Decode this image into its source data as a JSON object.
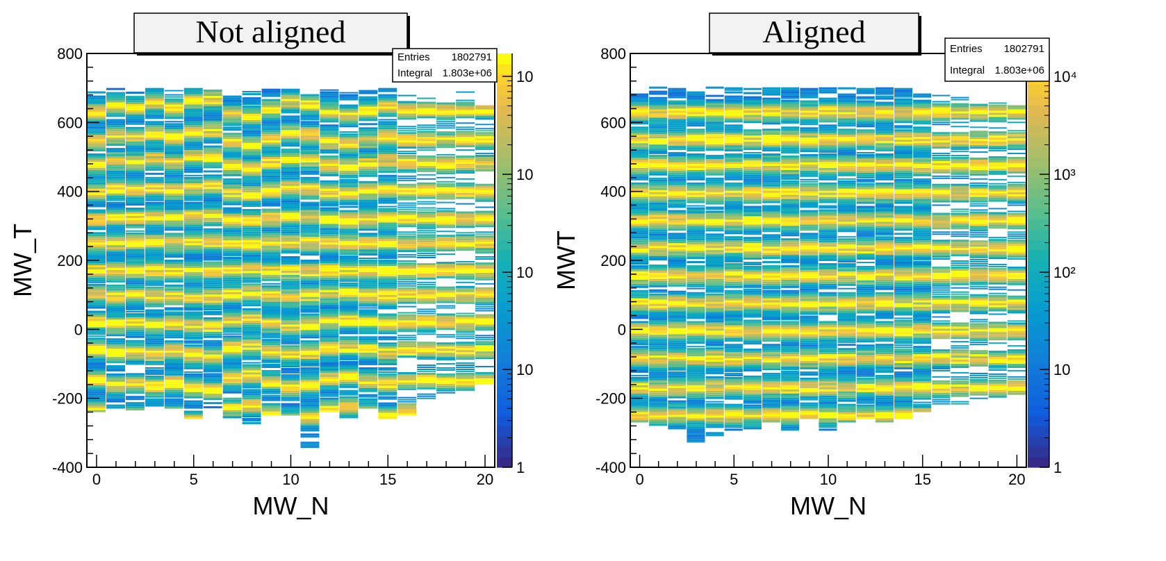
{
  "chart_data": [
    {
      "type": "heatmap",
      "title": "Not aligned",
      "xlabel": "MW_N",
      "ylabel": "MW_T",
      "xlim": [
        -0.5,
        20.5
      ],
      "ylim": [
        -400,
        800
      ],
      "x_ticks": [
        0,
        5,
        10,
        15,
        20
      ],
      "y_ticks": [
        -400,
        -200,
        0,
        200,
        400,
        600,
        800
      ],
      "z_scale": "log",
      "z_tick_labels": [
        "1",
        "10",
        "10",
        "10",
        "10"
      ],
      "stats": {
        "entries_label": "Entries",
        "entries_value": "1802791",
        "integral_label": "Integral",
        "integral_value": "1.803e+06"
      },
      "peak_shift_per_wire": [
        -2,
        6,
        4,
        9,
        3,
        12,
        15,
        -5,
        -9,
        2,
        11,
        7,
        -3,
        -7,
        0,
        5,
        0,
        0,
        0,
        0,
        0
      ],
      "populated_range_per_wire": [
        [
          -240,
          690
        ],
        [
          -230,
          700
        ],
        [
          -235,
          695
        ],
        [
          -230,
          695
        ],
        [
          -230,
          700
        ],
        [
          -260,
          700
        ],
        [
          -235,
          695
        ],
        [
          -270,
          690
        ],
        [
          -275,
          690
        ],
        [
          -250,
          695
        ],
        [
          -250,
          700
        ],
        [
          -350,
          690
        ],
        [
          -240,
          695
        ],
        [
          -260,
          690
        ],
        [
          -230,
          690
        ],
        [
          -260,
          695
        ],
        [
          -250,
          690
        ],
        [
          -210,
          680
        ],
        [
          -200,
          660
        ],
        [
          -180,
          690
        ],
        [
          -160,
          650
        ]
      ]
    },
    {
      "type": "heatmap",
      "title": "Aligned",
      "xlabel": "MW_N",
      "ylabel": "MWT",
      "xlim": [
        -0.5,
        20.5
      ],
      "ylim": [
        -400,
        800
      ],
      "x_ticks": [
        0,
        5,
        10,
        15,
        20
      ],
      "y_ticks": [
        -400,
        -200,
        0,
        200,
        400,
        600,
        800
      ],
      "z_scale": "log",
      "z_tick_labels": [
        "1",
        "10",
        "10²",
        "10³",
        "10⁴"
      ],
      "stats": {
        "entries_label": "Entries",
        "entries_value": "1802791",
        "integral_label": "Integral",
        "integral_value": "1.803e+06"
      },
      "band_centers": [
        -250,
        -170,
        -85,
        -5,
        75,
        155,
        235,
        315,
        395,
        475,
        550,
        630
      ],
      "populated_range_per_wire": [
        [
          -270,
          690
        ],
        [
          -280,
          700
        ],
        [
          -290,
          700
        ],
        [
          -330,
          700
        ],
        [
          -310,
          700
        ],
        [
          -300,
          700
        ],
        [
          -290,
          700
        ],
        [
          -270,
          700
        ],
        [
          -300,
          700
        ],
        [
          -260,
          700
        ],
        [
          -300,
          700
        ],
        [
          -270,
          700
        ],
        [
          -260,
          700
        ],
        [
          -270,
          700
        ],
        [
          -260,
          700
        ],
        [
          -240,
          690
        ],
        [
          -220,
          680
        ],
        [
          -220,
          670
        ],
        [
          -210,
          650
        ],
        [
          -200,
          680
        ],
        [
          -190,
          650
        ]
      ]
    }
  ]
}
